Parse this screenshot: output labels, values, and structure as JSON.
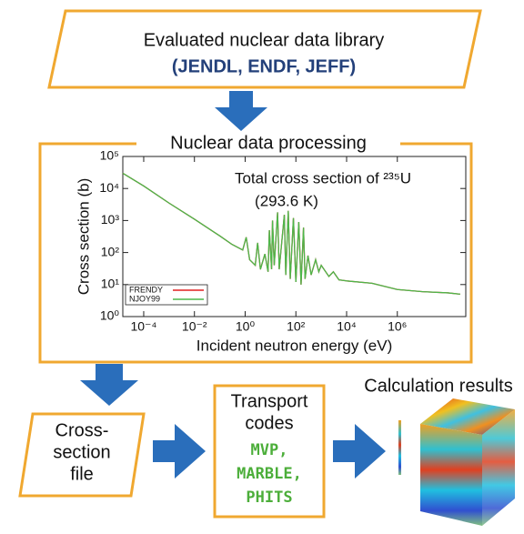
{
  "top_box": {
    "title": "Evaluated nuclear data library",
    "libraries": "(JENDL, ENDF, JEFF)"
  },
  "processing": {
    "title": "Nuclear data processing",
    "chart": {
      "type": "line",
      "title_lines": [
        "Total cross section of ²³⁵U",
        "(293.6 K)"
      ],
      "x_label": "Incident neutron energy (eV)",
      "y_label": "Cross section (b)",
      "x_log": true,
      "y_log": true,
      "xlim": [
        1.5e-05,
        500000000.0
      ],
      "ylim": [
        1,
        100000
      ],
      "xticks": [
        {
          "value": 0.0001,
          "label": "10⁻⁴"
        },
        {
          "value": 0.01,
          "label": "10⁻²"
        },
        {
          "value": 1,
          "label": "10⁰"
        },
        {
          "value": 100,
          "label": "10²"
        },
        {
          "value": 10000,
          "label": "10⁴"
        },
        {
          "value": 1000000,
          "label": "10⁶"
        }
      ],
      "yticks": [
        {
          "value": 1,
          "label": "10⁰"
        },
        {
          "value": 10,
          "label": "10¹"
        },
        {
          "value": 100,
          "label": "10²"
        },
        {
          "value": 1000,
          "label": "10³"
        },
        {
          "value": 10000,
          "label": "10⁴"
        },
        {
          "value": 100000,
          "label": "10⁵"
        }
      ],
      "x": [
        1.5e-05,
        0.0001,
        0.001,
        0.01,
        0.1,
        0.3,
        0.8,
        1.1,
        1.5,
        2.5,
        3.1,
        4,
        6,
        8,
        9,
        11,
        12,
        14,
        19,
        22,
        35,
        40,
        50,
        60,
        80,
        100,
        130,
        160,
        200,
        230,
        300,
        400,
        600,
        800,
        1000,
        2000,
        3000,
        5000,
        10000,
        100000,
        1000000,
        10000000,
        100000000,
        300000000
      ],
      "series": [
        {
          "name": "FRENDY",
          "color": "#e02020",
          "values": [
            30000,
            12000,
            3500,
            1100,
            330,
            180,
            120,
            300,
            60,
            40,
            200,
            30,
            90,
            25,
            500,
            30,
            1000,
            40,
            1800,
            30,
            1500,
            20,
            2000,
            15,
            1200,
            12,
            900,
            10,
            600,
            15,
            80,
            20,
            60,
            25,
            40,
            18,
            25,
            14,
            13,
            11,
            7,
            6,
            5.5,
            5
          ]
        },
        {
          "name": "NJOY99",
          "color": "#4cb84a",
          "values": [
            30000,
            12000,
            3500,
            1100,
            330,
            180,
            120,
            300,
            60,
            40,
            200,
            30,
            90,
            25,
            500,
            30,
            1000,
            40,
            1800,
            30,
            1500,
            20,
            2000,
            15,
            1200,
            12,
            900,
            10,
            600,
            15,
            80,
            20,
            60,
            25,
            40,
            18,
            25,
            14,
            13,
            11,
            7,
            6,
            5.5,
            5
          ]
        }
      ]
    }
  },
  "input_file": {
    "lines": [
      "Cross-",
      "section",
      "file"
    ]
  },
  "transport": {
    "title_lines": [
      "Transport",
      "codes"
    ],
    "codes": [
      "MVP,",
      "MARBLE,",
      "PHITS"
    ]
  },
  "results": {
    "title": "Calculation results"
  }
}
